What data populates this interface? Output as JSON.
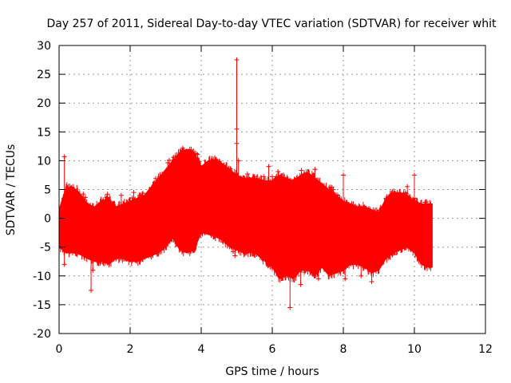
{
  "chart_data": {
    "type": "scatter",
    "title": "Day 257 of 2011, Sidereal Day-to-day VTEC variation (SDTVAR) for receiver whit",
    "xlabel": "GPS time / hours",
    "ylabel": "SDTVAR / TECUs",
    "xlim": [
      0,
      12
    ],
    "ylim": [
      -20,
      30
    ],
    "grid": true,
    "x_ticks": [
      0,
      2,
      4,
      6,
      8,
      10,
      12
    ],
    "x_tick_labels": [
      "0",
      "2",
      "4",
      "6",
      "8",
      "10",
      "12"
    ],
    "y_ticks": [
      -20,
      -15,
      -10,
      -5,
      0,
      5,
      10,
      15,
      20,
      25,
      30
    ],
    "y_tick_labels": [
      "-20",
      "-15",
      "-10",
      "-5",
      "0",
      "5",
      "10",
      "15",
      "20",
      "25",
      "30"
    ],
    "series": [
      {
        "name": "SDTVAR",
        "color": "#ff0000",
        "marker": "plus",
        "error_bars": true,
        "envelope": {
          "x": [
            0.0,
            0.2,
            0.5,
            0.8,
            1.0,
            1.2,
            1.4,
            1.6,
            1.8,
            2.0,
            2.2,
            2.4,
            2.6,
            2.8,
            3.0,
            3.2,
            3.4,
            3.6,
            3.8,
            4.0,
            4.2,
            4.4,
            4.6,
            4.8,
            5.0,
            5.2,
            5.5,
            5.8,
            6.0,
            6.2,
            6.4,
            6.6,
            6.8,
            7.0,
            7.2,
            7.4,
            7.6,
            7.8,
            8.0,
            8.2,
            8.4,
            8.6,
            8.8,
            9.0,
            9.2,
            9.4,
            9.6,
            9.8,
            10.0,
            10.2,
            10.4,
            10.5
          ],
          "upper": [
            1.5,
            5.5,
            5.0,
            2.5,
            2.0,
            3.0,
            3.5,
            2.0,
            2.5,
            3.0,
            3.5,
            4.0,
            5.5,
            7.0,
            8.5,
            10.0,
            11.5,
            12.0,
            11.5,
            9.0,
            10.0,
            10.2,
            9.5,
            8.5,
            7.5,
            7.0,
            7.0,
            6.5,
            6.5,
            7.5,
            7.0,
            6.5,
            7.5,
            8.0,
            7.0,
            6.0,
            5.0,
            4.0,
            3.0,
            2.5,
            2.0,
            2.0,
            1.5,
            1.0,
            3.5,
            4.5,
            4.5,
            4.0,
            3.0,
            2.5,
            2.5,
            2.5
          ],
          "lower": [
            -5.0,
            -6.0,
            -6.0,
            -7.0,
            -7.5,
            -7.5,
            -8.0,
            -7.0,
            -7.0,
            -7.5,
            -7.5,
            -7.0,
            -6.5,
            -6.0,
            -5.0,
            -3.5,
            -5.5,
            -6.0,
            -5.5,
            -2.5,
            -2.8,
            -3.2,
            -3.8,
            -5.0,
            -5.5,
            -6.0,
            -6.0,
            -7.5,
            -8.5,
            -10.5,
            -10.0,
            -10.5,
            -9.0,
            -9.0,
            -10.0,
            -8.5,
            -10.0,
            -9.5,
            -9.0,
            -8.0,
            -8.0,
            -8.5,
            -9.5,
            -9.0,
            -7.0,
            -6.0,
            -5.5,
            -5.0,
            -6.0,
            -8.0,
            -8.5,
            -8.5
          ]
        },
        "outliers": [
          {
            "x": 0.15,
            "y": 10.7
          },
          {
            "x": 0.15,
            "y": -8.0
          },
          {
            "x": 0.9,
            "y": -12.5
          },
          {
            "x": 0.95,
            "y": -9.0
          },
          {
            "x": 1.15,
            "y": -7.5
          },
          {
            "x": 1.75,
            "y": 4.0
          },
          {
            "x": 2.1,
            "y": 4.5
          },
          {
            "x": 4.9,
            "y": -5.8
          },
          {
            "x": 4.95,
            "y": -6.5
          },
          {
            "x": 5.0,
            "y": 27.5
          },
          {
            "x": 5.0,
            "y": 15.5
          },
          {
            "x": 5.0,
            "y": 13.0
          },
          {
            "x": 5.05,
            "y": 10.0
          },
          {
            "x": 5.9,
            "y": 9.0
          },
          {
            "x": 6.5,
            "y": -15.5
          },
          {
            "x": 6.8,
            "y": -11.5
          },
          {
            "x": 7.2,
            "y": 8.5
          },
          {
            "x": 7.3,
            "y": -10.5
          },
          {
            "x": 8.0,
            "y": 7.5
          },
          {
            "x": 8.05,
            "y": -10.5
          },
          {
            "x": 8.5,
            "y": -10.0
          },
          {
            "x": 8.8,
            "y": -11.0
          },
          {
            "x": 9.8,
            "y": 5.5
          },
          {
            "x": 10.0,
            "y": 7.5
          },
          {
            "x": 10.0,
            "y": 3.5
          }
        ]
      }
    ]
  }
}
